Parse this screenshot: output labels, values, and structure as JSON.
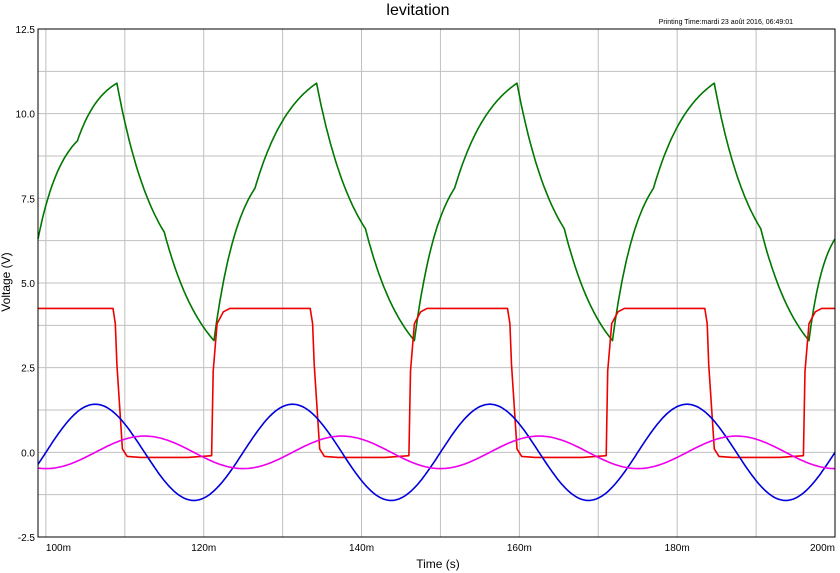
{
  "window": {
    "title": "levitation",
    "printing_time": "Printing Time:mardi 23 août 2016, 06:49:01"
  },
  "chart_data": {
    "type": "line",
    "title": "levitation",
    "xlabel": "Time (s)",
    "ylabel": "Voltage (V)",
    "xlim": [
      0.099,
      0.2
    ],
    "ylim": [
      -2.5,
      12.5
    ],
    "x_tick_labels": [
      "100m",
      "120m",
      "140m",
      "160m",
      "180m",
      "200m"
    ],
    "y_tick_labels": [
      "12.5",
      "10.0",
      "7.5",
      "5.0",
      "2.5",
      "0.0",
      "-2.5"
    ],
    "grid": true,
    "legend": "none",
    "series": [
      {
        "color": "#007700",
        "x": [
          0.099,
          0.104,
          0.109,
          0.115,
          0.1213,
          0.1265,
          0.1343,
          0.1405,
          0.1467,
          0.1518,
          0.1597,
          0.1657,
          0.1718,
          0.177,
          0.1847,
          0.1906,
          0.1967,
          0.2
        ],
        "y": [
          6.3,
          9.2,
          10.9,
          6.5,
          3.3,
          7.8,
          10.9,
          6.6,
          3.3,
          7.8,
          10.9,
          6.6,
          3.3,
          7.8,
          10.9,
          6.6,
          3.3,
          6.3
        ]
      },
      {
        "color": "#ee0000",
        "x": [
          0.099,
          0.1085,
          0.1088,
          0.109,
          0.1097,
          0.1103,
          0.112,
          0.118,
          0.121,
          0.1212,
          0.1217,
          0.1225,
          0.1233,
          0.1335,
          0.1338,
          0.134,
          0.1347,
          0.1353,
          0.137,
          0.143,
          0.146,
          0.1462,
          0.1467,
          0.1475,
          0.1483,
          0.1585,
          0.1588,
          0.159,
          0.1597,
          0.1603,
          0.162,
          0.168,
          0.171,
          0.1712,
          0.1717,
          0.1725,
          0.1733,
          0.1835,
          0.1838,
          0.184,
          0.1847,
          0.1853,
          0.187,
          0.193,
          0.196,
          0.1962,
          0.1967,
          0.1975,
          0.1983,
          0.2
        ],
        "y": [
          4.25,
          4.25,
          3.8,
          2.6,
          0.1,
          -0.12,
          -0.15,
          -0.15,
          -0.1,
          2.4,
          3.8,
          4.15,
          4.25,
          4.25,
          3.8,
          2.6,
          0.1,
          -0.12,
          -0.15,
          -0.15,
          -0.1,
          2.4,
          3.8,
          4.15,
          4.25,
          4.25,
          3.8,
          2.6,
          0.1,
          -0.12,
          -0.15,
          -0.15,
          -0.1,
          2.4,
          3.8,
          4.15,
          4.25,
          4.25,
          3.8,
          2.6,
          0.1,
          -0.12,
          -0.15,
          -0.15,
          -0.1,
          2.4,
          3.8,
          4.15,
          4.25,
          4.25
        ]
      },
      {
        "color": "#0000dd",
        "amplitude": 1.42,
        "period": 0.025,
        "zero_crossing": 0.1,
        "x": [
          0.099,
          0.1,
          0.10625,
          0.1125,
          0.11875,
          0.125,
          0.13125,
          0.1375,
          0.14375,
          0.15,
          0.15625,
          0.1625,
          0.16875,
          0.175,
          0.18125,
          0.1875,
          0.19375,
          0.2
        ],
        "y": [
          -0.36,
          0.0,
          1.42,
          0.0,
          -1.42,
          0.0,
          1.42,
          0.0,
          -1.42,
          0.0,
          1.42,
          0.0,
          -1.42,
          0.0,
          1.42,
          0.0,
          -1.42,
          0.0
        ]
      },
      {
        "color": "#ee00ee",
        "amplitude": 0.48,
        "period": 0.025,
        "zero_crossing": 0.10625,
        "x": [
          0.099,
          0.1,
          0.10625,
          0.1125,
          0.11875,
          0.125,
          0.13125,
          0.1375,
          0.14375,
          0.15,
          0.15625,
          0.1625,
          0.16875,
          0.175,
          0.18125,
          0.1875,
          0.19375,
          0.2
        ],
        "y": [
          0.39,
          0.48,
          0.0,
          -0.48,
          0.0,
          0.48,
          0.0,
          -0.48,
          0.0,
          0.48,
          0.0,
          -0.48,
          0.0,
          0.48,
          0.0,
          -0.48,
          0.0,
          0.48
        ]
      }
    ]
  }
}
